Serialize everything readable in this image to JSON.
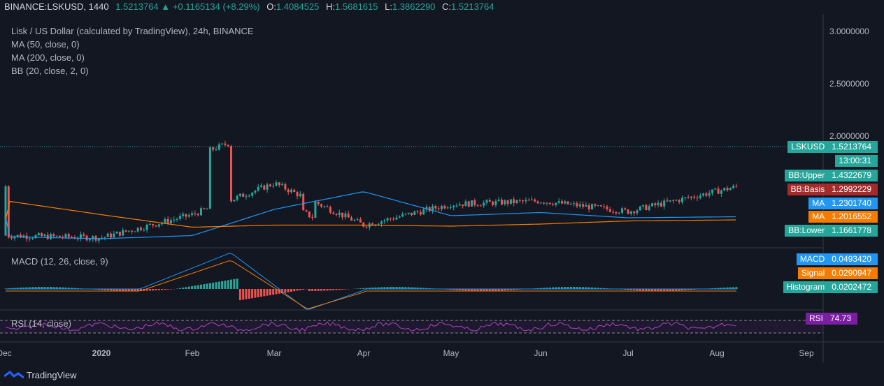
{
  "header": {
    "symbol": "BINANCE:LSKUSD, 1440",
    "last": "1.5213764",
    "arrow": "▲",
    "change": "+0.1165134 (+8.29%)",
    "o_label": "O:",
    "o": "1.4084525",
    "h_label": "H:",
    "h": "1.5681615",
    "l_label": "L:",
    "l": "1.3862290",
    "c_label": "C:",
    "c": "1.5213764"
  },
  "legend": {
    "title": "Lisk / US Dollar (calculated by TradingView), 24h, BINANCE",
    "ma50": "MA (50, close, 0)",
    "ma200": "MA (200, close, 0)",
    "bb": "BB (20, close, 2, 0)",
    "macd": "MACD (12, 26, close, 9)",
    "rsi": "RSI (14, close)"
  },
  "price_tags": [
    {
      "name": "LSKUSD",
      "value": "1.5213764",
      "color": "#26a69a"
    },
    {
      "name": "",
      "value": "13:00:31",
      "color": "#26a69a"
    },
    {
      "name": "BB:Upper",
      "value": "1.4322679",
      "color": "#26a69a"
    },
    {
      "name": "BB:Basis",
      "value": "1.2992229",
      "color": "#a52a2a"
    },
    {
      "name": "MA",
      "value": "1.2301740",
      "color": "#2196f3"
    },
    {
      "name": "MA",
      "value": "1.2016552",
      "color": "#f57c00"
    },
    {
      "name": "BB:Lower",
      "value": "1.1661778",
      "color": "#26a69a"
    }
  ],
  "macd_tags": [
    {
      "name": "MACD",
      "value": "0.0493420",
      "color": "#2196f3"
    },
    {
      "name": "Signal",
      "value": "0.0290947",
      "color": "#f57c00"
    },
    {
      "name": "Histogram",
      "value": "0.0202472",
      "color": "#26a69a"
    }
  ],
  "rsi_tag": {
    "name": "RSI",
    "value": "74.73",
    "color": "#7b1fa2"
  },
  "footer": {
    "brand": "TradingView"
  },
  "chart_data": {
    "type": "line",
    "title": "Lisk / US Dollar (calculated by TradingView), 24h, BINANCE",
    "price_axis": {
      "ticks": [
        "3.0000000",
        "2.5000000",
        "2.0000000"
      ],
      "ylim": [
        1.0,
        3.1
      ]
    },
    "time_axis": {
      "labels": [
        "Dec",
        "2020",
        "Feb",
        "Mar",
        "Apr",
        "May",
        "Jun",
        "Jul",
        "Aug",
        "Sep"
      ]
    },
    "series": [
      {
        "name": "MA (50, close, 0)",
        "color": "#2196f3",
        "x": [
          "Dec",
          "2020",
          "Feb",
          "Mar",
          "Apr",
          "May",
          "Jun",
          "Jul",
          "Aug"
        ],
        "values": [
          1.04,
          1.02,
          1.05,
          1.3,
          1.47,
          1.24,
          1.27,
          1.22,
          1.23
        ]
      },
      {
        "name": "MA (200, close, 0)",
        "color": "#f57c00",
        "x": [
          "Dec",
          "2020",
          "Feb",
          "Mar",
          "Apr",
          "May",
          "Jun",
          "Jul",
          "Aug"
        ],
        "values": [
          1.38,
          1.25,
          1.13,
          1.15,
          1.15,
          1.14,
          1.16,
          1.19,
          1.2
        ]
      },
      {
        "name": "Close",
        "color": "#26a69a",
        "x": [
          "Dec",
          "2020",
          "Feb",
          "Mar",
          "Apr",
          "May",
          "Jun",
          "Jul",
          "Aug"
        ],
        "values": [
          1.05,
          1.03,
          1.25,
          1.55,
          1.15,
          1.35,
          1.38,
          1.28,
          1.52
        ]
      }
    ],
    "grid": false,
    "legend_position": "top-left"
  }
}
